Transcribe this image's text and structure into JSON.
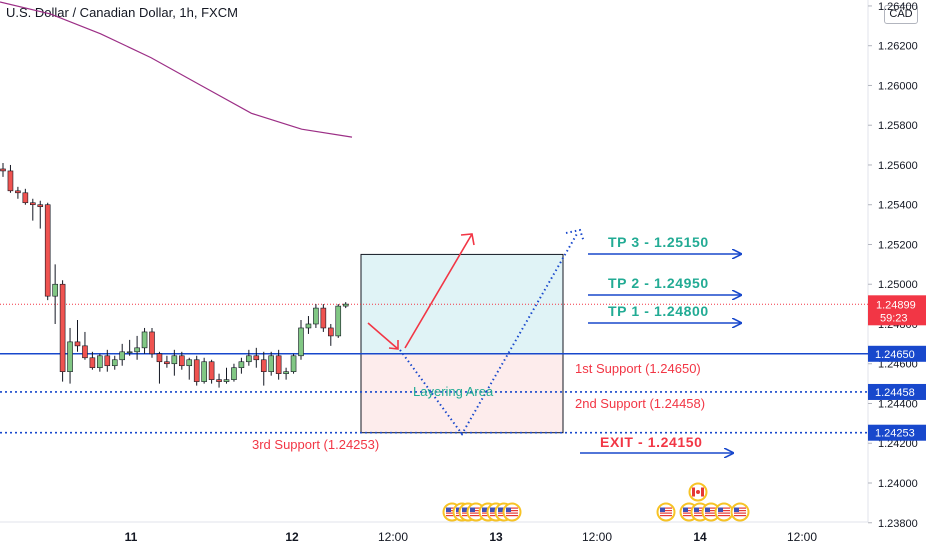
{
  "header": {
    "title": "U.S. Dollar / Canadian Dollar, 1h, FXCM",
    "currency": "CAD"
  },
  "colors": {
    "bull": "#81c784",
    "bear": "#ef5350",
    "blue": "#1848cc",
    "teal": "#22ab94",
    "red": "#f23645",
    "ma": "#9c2f86",
    "zone_top": "#e0f3f6",
    "zone_bottom": "#fdecec",
    "price_tag": "#f23645",
    "level_tag": "#1848cc"
  },
  "chart_data": {
    "type": "candlestick",
    "symbol": "U.S. Dollar / Canadian Dollar",
    "timeframe": "1h",
    "source": "FXCM",
    "y_axis": {
      "range": [
        1.2375,
        1.265
      ],
      "ticks": [
        "1.26400",
        "1.26200",
        "1.26000",
        "1.25800",
        "1.25600",
        "1.25400",
        "1.25200",
        "1.25000",
        "1.24800",
        "1.24600",
        "1.24400",
        "1.24200",
        "1.24000",
        "1.23800"
      ]
    },
    "x_axis": {
      "ticks": [
        "11",
        "12",
        "12:00",
        "13",
        "12:00",
        "14",
        "12:00"
      ]
    },
    "current_price": {
      "value": "1.24899",
      "countdown": "59:23"
    },
    "moving_average": [
      1.2642,
      1.2636,
      1.2626,
      1.2614,
      1.26,
      1.2586,
      1.2578,
      1.2574
    ],
    "candles": [
      {
        "o": 1.2558,
        "h": 1.2561,
        "l": 1.2554,
        "c": 1.2557
      },
      {
        "o": 1.2557,
        "h": 1.256,
        "l": 1.2546,
        "c": 1.2547
      },
      {
        "o": 1.2547,
        "h": 1.2549,
        "l": 1.2543,
        "c": 1.2546
      },
      {
        "o": 1.2546,
        "h": 1.2548,
        "l": 1.254,
        "c": 1.2541
      },
      {
        "o": 1.2541,
        "h": 1.2543,
        "l": 1.2532,
        "c": 1.254
      },
      {
        "o": 1.254,
        "h": 1.2542,
        "l": 1.2528,
        "c": 1.2539
      },
      {
        "o": 1.254,
        "h": 1.2541,
        "l": 1.2492,
        "c": 1.2494
      },
      {
        "o": 1.2494,
        "h": 1.251,
        "l": 1.248,
        "c": 1.25
      },
      {
        "o": 1.25,
        "h": 1.2502,
        "l": 1.2451,
        "c": 1.2456
      },
      {
        "o": 1.2456,
        "h": 1.2478,
        "l": 1.245,
        "c": 1.2471
      },
      {
        "o": 1.2471,
        "h": 1.2482,
        "l": 1.2466,
        "c": 1.2469
      },
      {
        "o": 1.2469,
        "h": 1.2476,
        "l": 1.2462,
        "c": 1.2463
      },
      {
        "o": 1.2463,
        "h": 1.2466,
        "l": 1.2457,
        "c": 1.2458
      },
      {
        "o": 1.2458,
        "h": 1.2465,
        "l": 1.2456,
        "c": 1.2464
      },
      {
        "o": 1.2464,
        "h": 1.2467,
        "l": 1.2456,
        "c": 1.2459
      },
      {
        "o": 1.2459,
        "h": 1.2464,
        "l": 1.2457,
        "c": 1.2462
      },
      {
        "o": 1.2462,
        "h": 1.247,
        "l": 1.2459,
        "c": 1.2466
      },
      {
        "o": 1.2466,
        "h": 1.2472,
        "l": 1.2464,
        "c": 1.2466
      },
      {
        "o": 1.2466,
        "h": 1.2474,
        "l": 1.2462,
        "c": 1.2468
      },
      {
        "o": 1.2468,
        "h": 1.2478,
        "l": 1.2465,
        "c": 1.2476
      },
      {
        "o": 1.2476,
        "h": 1.2478,
        "l": 1.2463,
        "c": 1.2465
      },
      {
        "o": 1.2465,
        "h": 1.2466,
        "l": 1.245,
        "c": 1.2461
      },
      {
        "o": 1.2461,
        "h": 1.2464,
        "l": 1.2458,
        "c": 1.246
      },
      {
        "o": 1.246,
        "h": 1.2467,
        "l": 1.2454,
        "c": 1.2464
      },
      {
        "o": 1.2464,
        "h": 1.2466,
        "l": 1.2457,
        "c": 1.2459
      },
      {
        "o": 1.2459,
        "h": 1.2463,
        "l": 1.2452,
        "c": 1.2462
      },
      {
        "o": 1.2462,
        "h": 1.2464,
        "l": 1.2449,
        "c": 1.2451
      },
      {
        "o": 1.2451,
        "h": 1.2463,
        "l": 1.245,
        "c": 1.2461
      },
      {
        "o": 1.2461,
        "h": 1.2462,
        "l": 1.245,
        "c": 1.2452
      },
      {
        "o": 1.2452,
        "h": 1.2455,
        "l": 1.2448,
        "c": 1.2451
      },
      {
        "o": 1.2451,
        "h": 1.2458,
        "l": 1.245,
        "c": 1.2452
      },
      {
        "o": 1.2452,
        "h": 1.246,
        "l": 1.2451,
        "c": 1.2458
      },
      {
        "o": 1.2458,
        "h": 1.2463,
        "l": 1.2455,
        "c": 1.2461
      },
      {
        "o": 1.2461,
        "h": 1.2467,
        "l": 1.2459,
        "c": 1.2464
      },
      {
        "o": 1.2464,
        "h": 1.2468,
        "l": 1.2458,
        "c": 1.2462
      },
      {
        "o": 1.2462,
        "h": 1.2466,
        "l": 1.2449,
        "c": 1.2456
      },
      {
        "o": 1.2456,
        "h": 1.2466,
        "l": 1.2454,
        "c": 1.2464
      },
      {
        "o": 1.2464,
        "h": 1.2467,
        "l": 1.2452,
        "c": 1.2455
      },
      {
        "o": 1.2455,
        "h": 1.2458,
        "l": 1.2452,
        "c": 1.2456
      },
      {
        "o": 1.2456,
        "h": 1.2465,
        "l": 1.2455,
        "c": 1.2464
      },
      {
        "o": 1.2464,
        "h": 1.2482,
        "l": 1.2462,
        "c": 1.2478
      },
      {
        "o": 1.2478,
        "h": 1.2484,
        "l": 1.2475,
        "c": 1.248
      },
      {
        "o": 1.248,
        "h": 1.249,
        "l": 1.2478,
        "c": 1.2488
      },
      {
        "o": 1.2488,
        "h": 1.249,
        "l": 1.2476,
        "c": 1.2478
      },
      {
        "o": 1.2478,
        "h": 1.248,
        "l": 1.2469,
        "c": 1.2474
      },
      {
        "o": 1.2474,
        "h": 1.249,
        "l": 1.2473,
        "c": 1.2489
      },
      {
        "o": 1.2489,
        "h": 1.2491,
        "l": 1.2488,
        "c": 1.249
      }
    ],
    "levels": [
      {
        "name": "1st Support",
        "value": 1.2465,
        "tag": "1.24650",
        "label": "1st Support (1.24650)",
        "style": "solid"
      },
      {
        "name": "2nd Support",
        "value": 1.24458,
        "tag": "1.24458",
        "label": "2nd Support (1.24458)",
        "style": "dotted"
      },
      {
        "name": "3rd Support",
        "value": 1.24253,
        "tag": "1.24253",
        "label": "3rd Support (1.24253)",
        "style": "dotted"
      }
    ],
    "targets": [
      {
        "label": "TP 3 - 1.25150",
        "value": 1.2515
      },
      {
        "label": "TP 2 - 1.24950",
        "value": 1.2495
      },
      {
        "label": "TP 1 - 1.24800",
        "value": 1.248
      }
    ],
    "exit": {
      "label": "EXIT - 1.24150",
      "value": 1.2415
    },
    "zone": {
      "label": "Layering Area",
      "top": 1.2515,
      "mid": 1.2465,
      "bottom": 1.24253
    }
  }
}
